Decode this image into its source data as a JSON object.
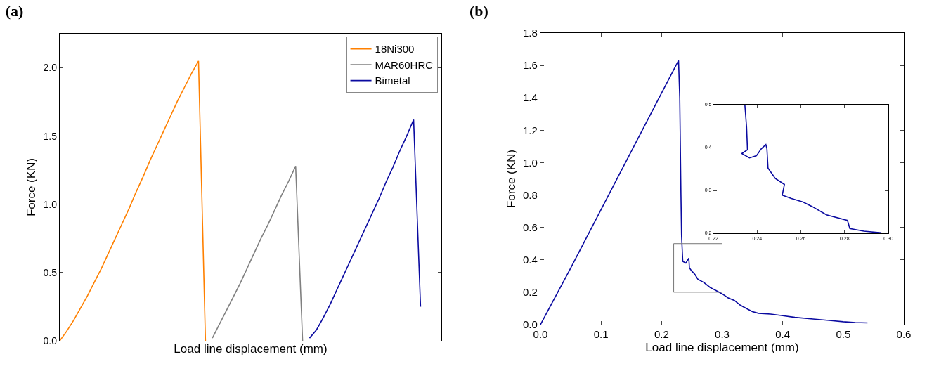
{
  "chart_data": [
    {
      "type": "line",
      "title": "(a)",
      "xlabel": "Load line displacement (mm)",
      "ylabel": "Force (KN)",
      "tick_labels": "y",
      "grid": false,
      "legend": "top right",
      "categories": [
        null,
        null,
        null,
        null,
        null,
        null,
        null,
        null,
        null,
        null,
        null,
        null,
        null,
        null,
        null,
        null,
        null,
        null,
        null,
        null,
        null,
        null,
        null,
        null,
        null,
        null,
        null,
        null,
        null,
        null,
        null,
        null,
        null,
        null,
        null,
        null,
        null,
        null,
        null,
        null,
        null,
        null,
        null,
        null,
        null,
        null,
        null,
        null,
        null,
        null,
        null,
        null,
        null,
        null,
        null,
        null
      ],
      "ylim": [
        0,
        2.25
      ],
      "yticks": [
        {
          "value": 0,
          "label": "0.0"
        },
        {
          "value": 0.5,
          "label": "0.5"
        },
        {
          "value": 1,
          "label": "1.0"
        },
        {
          "value": 1.5,
          "label": "1.5"
        },
        {
          "value": 2,
          "label": "2.0"
        }
      ],
      "series": [
        {
          "name": "18Ni300",
          "color": "#ff8000",
          "values": [
            0,
            0.07,
            0.15,
            0.24,
            0.33,
            0.43,
            0.53,
            0.64,
            0.75,
            0.86,
            0.97,
            1.09,
            1.2,
            1.32,
            1.43,
            1.54,
            1.65,
            1.76,
            1.86,
            1.96,
            2.05,
            0,
            null,
            null,
            null,
            null,
            null,
            null,
            null,
            null,
            null,
            null,
            null,
            null,
            null,
            null,
            null,
            null,
            null,
            null,
            null,
            null,
            null,
            null,
            null,
            null,
            null,
            null,
            null,
            null,
            null,
            null,
            null,
            null,
            null,
            null
          ]
        },
        {
          "name": "MAR60HRC",
          "color": "#808080",
          "values": [
            null,
            null,
            null,
            null,
            null,
            null,
            null,
            null,
            null,
            null,
            null,
            null,
            null,
            null,
            null,
            null,
            null,
            null,
            null,
            null,
            null,
            null,
            0.02,
            0.12,
            0.22,
            0.32,
            0.42,
            0.53,
            0.64,
            0.75,
            0.85,
            0.96,
            1.07,
            1.17,
            1.28,
            0,
            null,
            null,
            null,
            null,
            null,
            null,
            null,
            null,
            null,
            null,
            null,
            null,
            null,
            null,
            null,
            null,
            null,
            null,
            null,
            null
          ]
        },
        {
          "name": "Bimetal",
          "color": "#0a0aa0",
          "values": [
            null,
            null,
            null,
            null,
            null,
            null,
            null,
            null,
            null,
            null,
            null,
            null,
            null,
            null,
            null,
            null,
            null,
            null,
            null,
            null,
            null,
            null,
            null,
            null,
            null,
            null,
            null,
            null,
            null,
            null,
            null,
            null,
            null,
            null,
            null,
            null,
            0.02,
            0.08,
            0.17,
            0.27,
            0.38,
            0.49,
            0.6,
            0.71,
            0.82,
            0.93,
            1.04,
            1.16,
            1.27,
            1.39,
            1.5,
            1.62,
            0.25,
            null,
            null,
            null
          ]
        }
      ]
    },
    {
      "type": "line",
      "title": "(b)",
      "xlabel": "Load line displacement (mm)",
      "ylabel": "Force (KN)",
      "grid": false,
      "xlim": [
        0,
        0.6
      ],
      "xticks": [
        {
          "value": 0,
          "label": "0.0"
        },
        0.1,
        0.2,
        0.3,
        0.4,
        0.5,
        0.6
      ],
      "ylim": [
        0,
        1.8
      ],
      "yticks": [
        {
          "value": 0,
          "label": "0.0"
        },
        0.2,
        0.4,
        0.6,
        0.8,
        {
          "value": 1,
          "label": "1.0"
        },
        1.2,
        1.4,
        1.6,
        1.8
      ],
      "series": [
        {
          "color": "#0a0aa0",
          "x": [
            0,
            0.05,
            0.1,
            0.15,
            0.2,
            0.228,
            0.23,
            0.232,
            0.233,
            0.235,
            0.24,
            0.245,
            0.246,
            0.25,
            0.255,
            0.26,
            0.27,
            0.28,
            0.29,
            0.3,
            0.31,
            0.32,
            0.33,
            0.34,
            0.35,
            0.36,
            0.38,
            0.4,
            0.42,
            0.45,
            0.48,
            0.5,
            0.52,
            0.54
          ],
          "values": [
            0,
            0.35,
            0.71,
            1.07,
            1.43,
            1.63,
            1.4,
            0.8,
            0.55,
            0.39,
            0.38,
            0.41,
            0.35,
            0.33,
            0.31,
            0.28,
            0.26,
            0.23,
            0.21,
            0.19,
            0.165,
            0.15,
            0.12,
            0.1,
            0.08,
            0.07,
            0.065,
            0.055,
            0.045,
            0.035,
            0.025,
            0.018,
            0.013,
            0.011
          ]
        }
      ]
    },
    {
      "type": "line",
      "grid": false,
      "xlim": [
        0.22,
        0.3
      ],
      "xticks": [
        0.22,
        0.24,
        0.26,
        0.28,
        {
          "value": 0.3,
          "label": "0.30"
        }
      ],
      "ylim": [
        0.2,
        0.5
      ],
      "yticks": [
        0.2,
        0.3,
        0.4,
        0.5
      ],
      "series": [
        {
          "color": "#0a0aa0",
          "x": [
            0.2344,
            0.2352,
            0.2356,
            0.233,
            0.2365,
            0.2397,
            0.2419,
            0.244,
            0.2445,
            0.245,
            0.2483,
            0.2525,
            0.2515,
            0.2557,
            0.261,
            0.2653,
            0.2717,
            0.2813,
            0.2824,
            0.2888,
            0.2968
          ],
          "values": [
            0.5,
            0.447,
            0.395,
            0.386,
            0.376,
            0.381,
            0.397,
            0.407,
            0.397,
            0.352,
            0.328,
            0.314,
            0.289,
            0.281,
            0.273,
            0.262,
            0.243,
            0.23,
            0.211,
            0.205,
            0.201
          ]
        }
      ]
    }
  ]
}
